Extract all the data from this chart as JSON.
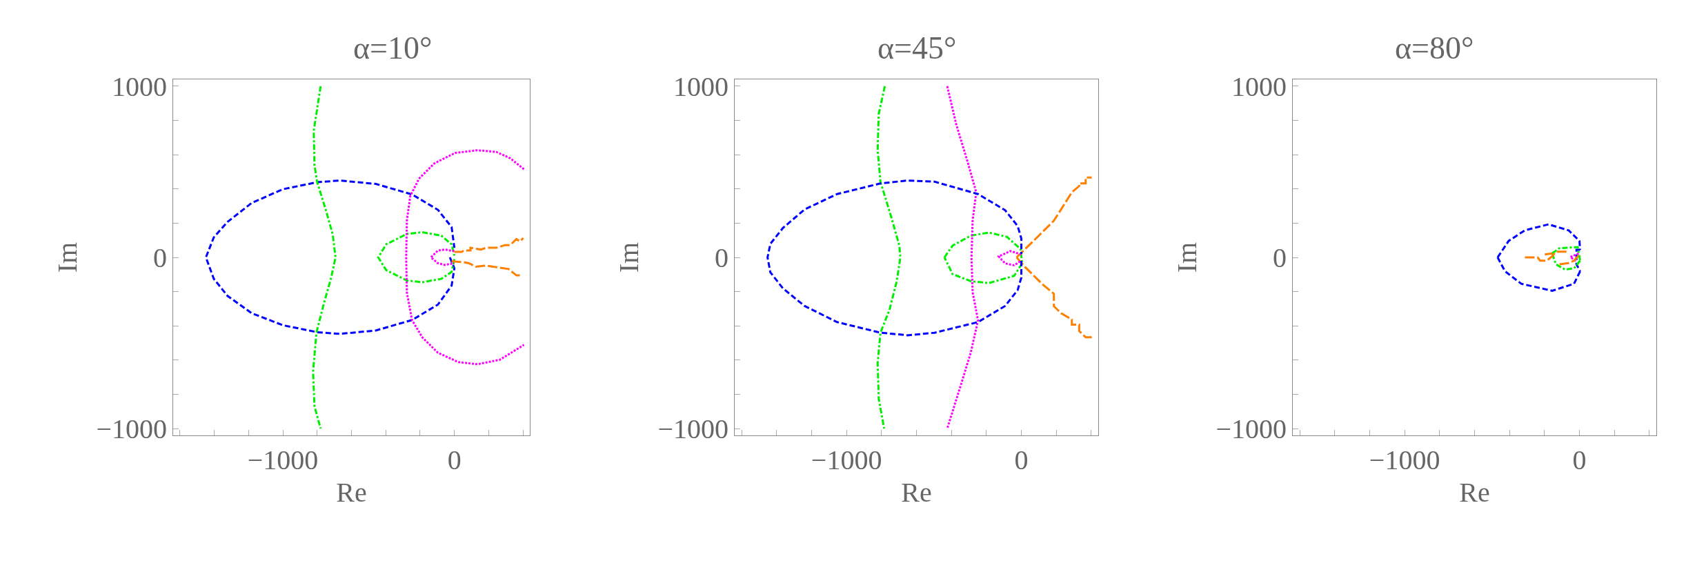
{
  "chart_data": [
    {
      "type": "line",
      "title": "α=10°",
      "xlabel": "Re",
      "ylabel": "Im",
      "xlim": [
        -1640,
        440
      ],
      "ylim": [
        -1040,
        1040
      ],
      "xticks": [
        {
          "value": -1600,
          "label": null
        },
        {
          "value": -1400,
          "label": null
        },
        {
          "value": -1200,
          "label": null
        },
        {
          "value": -1000,
          "label": "−1000"
        },
        {
          "value": -800,
          "label": null
        },
        {
          "value": -600,
          "label": null
        },
        {
          "value": -400,
          "label": null
        },
        {
          "value": -200,
          "label": null
        },
        0,
        {
          "value": 200,
          "label": null
        },
        {
          "value": 400,
          "label": null
        }
      ],
      "yticks": [
        {
          "value": -1000,
          "label": "−1000"
        },
        {
          "value": -800,
          "label": null
        },
        {
          "value": -600,
          "label": null
        },
        {
          "value": -400,
          "label": null
        },
        {
          "value": -200,
          "label": null
        },
        0,
        {
          "value": 200,
          "label": null
        },
        {
          "value": 400,
          "label": null
        },
        {
          "value": 600,
          "label": null
        },
        {
          "value": 800,
          "label": null
        },
        1000
      ],
      "series": [
        {
          "color": "#0000ff",
          "line_style": "dashed",
          "x": [
            -26,
            0,
            -16,
            -96,
            -247,
            -458,
            -669,
            -800,
            -1001,
            -1182,
            -1323,
            -1403,
            -1449,
            -1403,
            -1323,
            -1182,
            -1001,
            -800,
            -669,
            -458,
            -247,
            -96,
            -16,
            0
          ],
          "values": [
            0,
            -64,
            -165,
            -276,
            -366,
            -427,
            -447,
            -437,
            -396,
            -326,
            -225,
            -125,
            0,
            117,
            207,
            318,
            398,
            439,
            449,
            429,
            368,
            278,
            177,
            56
          ]
        },
        {
          "color": "#00ee00",
          "line_style": "dashdot",
          "x": [
            -780,
            -820,
            -816,
            -800,
            -750,
            -710,
            -693,
            -720,
            -760,
            -804,
            -824,
            -816,
            -780
          ],
          "values": [
            1000,
            740,
            539,
            439,
            278,
            137,
            0,
            -125,
            -266,
            -437,
            -668,
            -869,
            -1000
          ]
        },
        {
          "color": "#00ee00",
          "line_style": "dashdot",
          "x": [
            0,
            -16,
            -76,
            -187,
            -277,
            -398,
            -444,
            -398,
            -277,
            -187,
            -76,
            -16,
            0
          ],
          "values": [
            -10,
            -85,
            -125,
            -145,
            -135,
            -74,
            0,
            76,
            137,
            147,
            127,
            76,
            10
          ]
        },
        {
          "color": "#ff00ff",
          "line_style": "dotted",
          "x": [
            406,
            326,
            245,
            135,
            4,
            -117,
            -207,
            -257,
            -277,
            -281,
            -277,
            -247,
            -187,
            -96,
            24,
            135,
            265,
            406
          ],
          "values": [
            515,
            579,
            616,
            626,
            610,
            549,
            459,
            358,
            217,
            0,
            -205,
            -366,
            -467,
            -557,
            -612,
            -624,
            -598,
            -511
          ]
        },
        {
          "color": "#ff00ff",
          "line_style": "dotted",
          "x": [
            0,
            -56,
            -96,
            -137,
            -96,
            -56,
            0
          ],
          "values": [
            36,
            46,
            40,
            0,
            -34,
            -44,
            -34
          ]
        },
        {
          "color": "#ff7f00",
          "line_style": "longdash",
          "x": [
            0,
            44,
            54,
            94,
            94,
            155,
            185,
            245,
            295,
            326,
            362,
            382,
            402
          ],
          "values": [
            32,
            32,
            40,
            40,
            56,
            46,
            56,
            56,
            72,
            72,
            107,
            93,
            113
          ]
        },
        {
          "color": "#ff7f00",
          "line_style": "longdash",
          "x": [
            -16,
            4,
            54,
            84,
            125,
            185,
            225,
            316,
            362,
            386
          ],
          "values": [
            -20,
            -24,
            -28,
            -34,
            -54,
            -48,
            -54,
            -68,
            -105,
            -105
          ]
        }
      ]
    },
    {
      "type": "line",
      "title": "α=45°",
      "xlabel": "Re",
      "ylabel": "Im",
      "xlim": [
        -1640,
        440
      ],
      "ylim": [
        -1040,
        1040
      ],
      "xticks": [
        {
          "value": -1600,
          "label": null
        },
        {
          "value": -1400,
          "label": null
        },
        {
          "value": -1200,
          "label": null
        },
        {
          "value": -1000,
          "label": "−1000"
        },
        {
          "value": -800,
          "label": null
        },
        {
          "value": -600,
          "label": null
        },
        {
          "value": -400,
          "label": null
        },
        {
          "value": -200,
          "label": null
        },
        0,
        {
          "value": 200,
          "label": null
        },
        {
          "value": 400,
          "label": null
        }
      ],
      "yticks": [
        {
          "value": -1000,
          "label": "−1000"
        },
        {
          "value": -800,
          "label": null
        },
        {
          "value": -600,
          "label": null
        },
        {
          "value": -400,
          "label": null
        },
        {
          "value": -200,
          "label": null
        },
        0,
        {
          "value": 200,
          "label": null
        },
        {
          "value": 400,
          "label": null
        },
        {
          "value": 600,
          "label": null
        },
        {
          "value": 800,
          "label": null
        },
        1000
      ],
      "series": [
        {
          "color": "#00ee00",
          "line_style": "dashdot",
          "x": [
            -781,
            -816,
            -822,
            -806,
            -744,
            -698,
            -692,
            -713,
            -754,
            -806,
            -822,
            -816,
            -785
          ],
          "values": [
            1000,
            837,
            629,
            442,
            235,
            69,
            0,
            -139,
            -305,
            -440,
            -617,
            -825,
            -1000
          ]
        },
        {
          "color": "#00ee00",
          "line_style": "dashdot",
          "x": [
            -440,
            -393,
            -289,
            -186,
            -83,
            -4,
            4
          ],
          "values": [
            0,
            69,
            127,
            145,
            120,
            48,
            -35
          ]
        },
        {
          "color": "#00ee00",
          "line_style": "dashdot",
          "x": [
            4,
            -41,
            -186,
            -289,
            -393,
            -440
          ],
          "values": [
            -35,
            -108,
            -150,
            -139,
            -98,
            0
          ]
        },
        {
          "color": "#ff00ff",
          "line_style": "dotted",
          "x": [
            -424,
            -372,
            -310,
            -258,
            -279,
            -285,
            -279,
            -248,
            -289,
            -351,
            -424
          ],
          "values": [
            1000,
            775,
            567,
            380,
            214,
            0,
            -201,
            -368,
            -555,
            -762,
            -1000
          ]
        },
        {
          "color": "#ff7f00",
          "line_style": "longdash",
          "x": [
            -27,
            0,
            83,
            186,
            289,
            331,
            331,
            368,
            368,
            403
          ],
          "values": [
            0,
            27,
            110,
            214,
            380,
            417,
            432,
            432,
            467,
            467
          ]
        },
        {
          "color": "#ff7f00",
          "line_style": "longdash",
          "x": [
            -27,
            21,
            124,
            186,
            186,
            227,
            289,
            289,
            331,
            331,
            368,
            403
          ],
          "values": [
            0,
            -56,
            -160,
            -212,
            -285,
            -326,
            -363,
            -393,
            -393,
            -430,
            -467,
            -467
          ]
        },
        {
          "color": "#ff00ff",
          "line_style": "dotted",
          "x": [
            0,
            -62,
            -130,
            -93,
            -41,
            0
          ],
          "values": [
            17,
            37,
            6,
            -35,
            -46,
            -19
          ]
        },
        {
          "color": "#0000ff",
          "line_style": "dashed",
          "x": [
            0,
            0,
            -21,
            -93,
            -248,
            -496,
            -651,
            -806,
            -1054,
            -1240,
            -1364,
            -1436,
            -1452,
            -1436,
            -1364,
            -1240,
            -1054,
            -806,
            -651,
            -496,
            -248,
            -93,
            -21,
            0,
            0
          ],
          "values": [
            -20,
            -118,
            -191,
            -284,
            -378,
            -440,
            -455,
            -440,
            -378,
            -284,
            -181,
            -87,
            0,
            79,
            172,
            280,
            370,
            432,
            449,
            442,
            370,
            276,
            183,
            110,
            20
          ]
        }
      ]
    },
    {
      "type": "line",
      "title": "α=80°",
      "xlabel": "Re",
      "ylabel": "Im",
      "xlim": [
        -1640,
        440
      ],
      "ylim": [
        -1040,
        1040
      ],
      "xticks": [
        {
          "value": -1600,
          "label": null
        },
        {
          "value": -1400,
          "label": null
        },
        {
          "value": -1200,
          "label": null
        },
        {
          "value": -1000,
          "label": "−1000"
        },
        {
          "value": -800,
          "label": null
        },
        {
          "value": -600,
          "label": null
        },
        {
          "value": -400,
          "label": null
        },
        {
          "value": -200,
          "label": null
        },
        0,
        {
          "value": 200,
          "label": null
        },
        {
          "value": 400,
          "label": null
        }
      ],
      "yticks": [
        {
          "value": -1000,
          "label": "−1000"
        },
        {
          "value": -800,
          "label": null
        },
        {
          "value": -600,
          "label": null
        },
        {
          "value": -400,
          "label": null
        },
        {
          "value": -200,
          "label": null
        },
        0,
        {
          "value": 200,
          "label": null
        },
        {
          "value": 400,
          "label": null
        },
        {
          "value": 600,
          "label": null
        },
        {
          "value": 800,
          "label": null
        },
        1000
      ],
      "series": [
        {
          "color": "#0000ff",
          "line_style": "dashed",
          "x": [
            -468,
            -405,
            -312,
            -177,
            -62,
            0,
            4
          ],
          "values": [
            0,
            96,
            158,
            193,
            158,
            96,
            44
          ]
        },
        {
          "color": "#0000ff",
          "line_style": "dashed",
          "x": [
            4,
            -17,
            -17,
            4
          ],
          "values": [
            44,
            44,
            -40,
            -81
          ]
        },
        {
          "color": "#0000ff",
          "line_style": "dashed",
          "x": [
            4,
            -31,
            -156,
            -333,
            -426,
            -468
          ],
          "values": [
            -81,
            -154,
            -195,
            -154,
            -81,
            0
          ]
        },
        {
          "color": "#00ee00",
          "line_style": "dashdot",
          "x": [
            -156,
            -114,
            -10,
            4
          ],
          "values": [
            23,
            54,
            60,
            -19
          ]
        },
        {
          "color": "#00ee00",
          "line_style": "dashdot",
          "x": [
            4,
            -31,
            -83,
            -135,
            -156
          ],
          "values": [
            -19,
            -64,
            -71,
            -40,
            23
          ]
        },
        {
          "color": "#ff00ff",
          "line_style": "dotted",
          "x": [
            -4,
            -52,
            -17
          ],
          "values": [
            23,
            2,
            -23
          ]
        },
        {
          "color": "#ff7f00",
          "line_style": "longdash",
          "x": [
            -312,
            -239,
            -225,
            -187,
            -156,
            -135,
            -62,
            null,
            -198,
            -156,
            null,
            -114,
            -62,
            -31,
            -4
          ],
          "values": [
            0,
            0,
            -19,
            -19,
            6,
            33,
            33,
            null,
            17,
            23,
            null,
            -40,
            -33,
            -19,
            12
          ]
        }
      ]
    }
  ]
}
